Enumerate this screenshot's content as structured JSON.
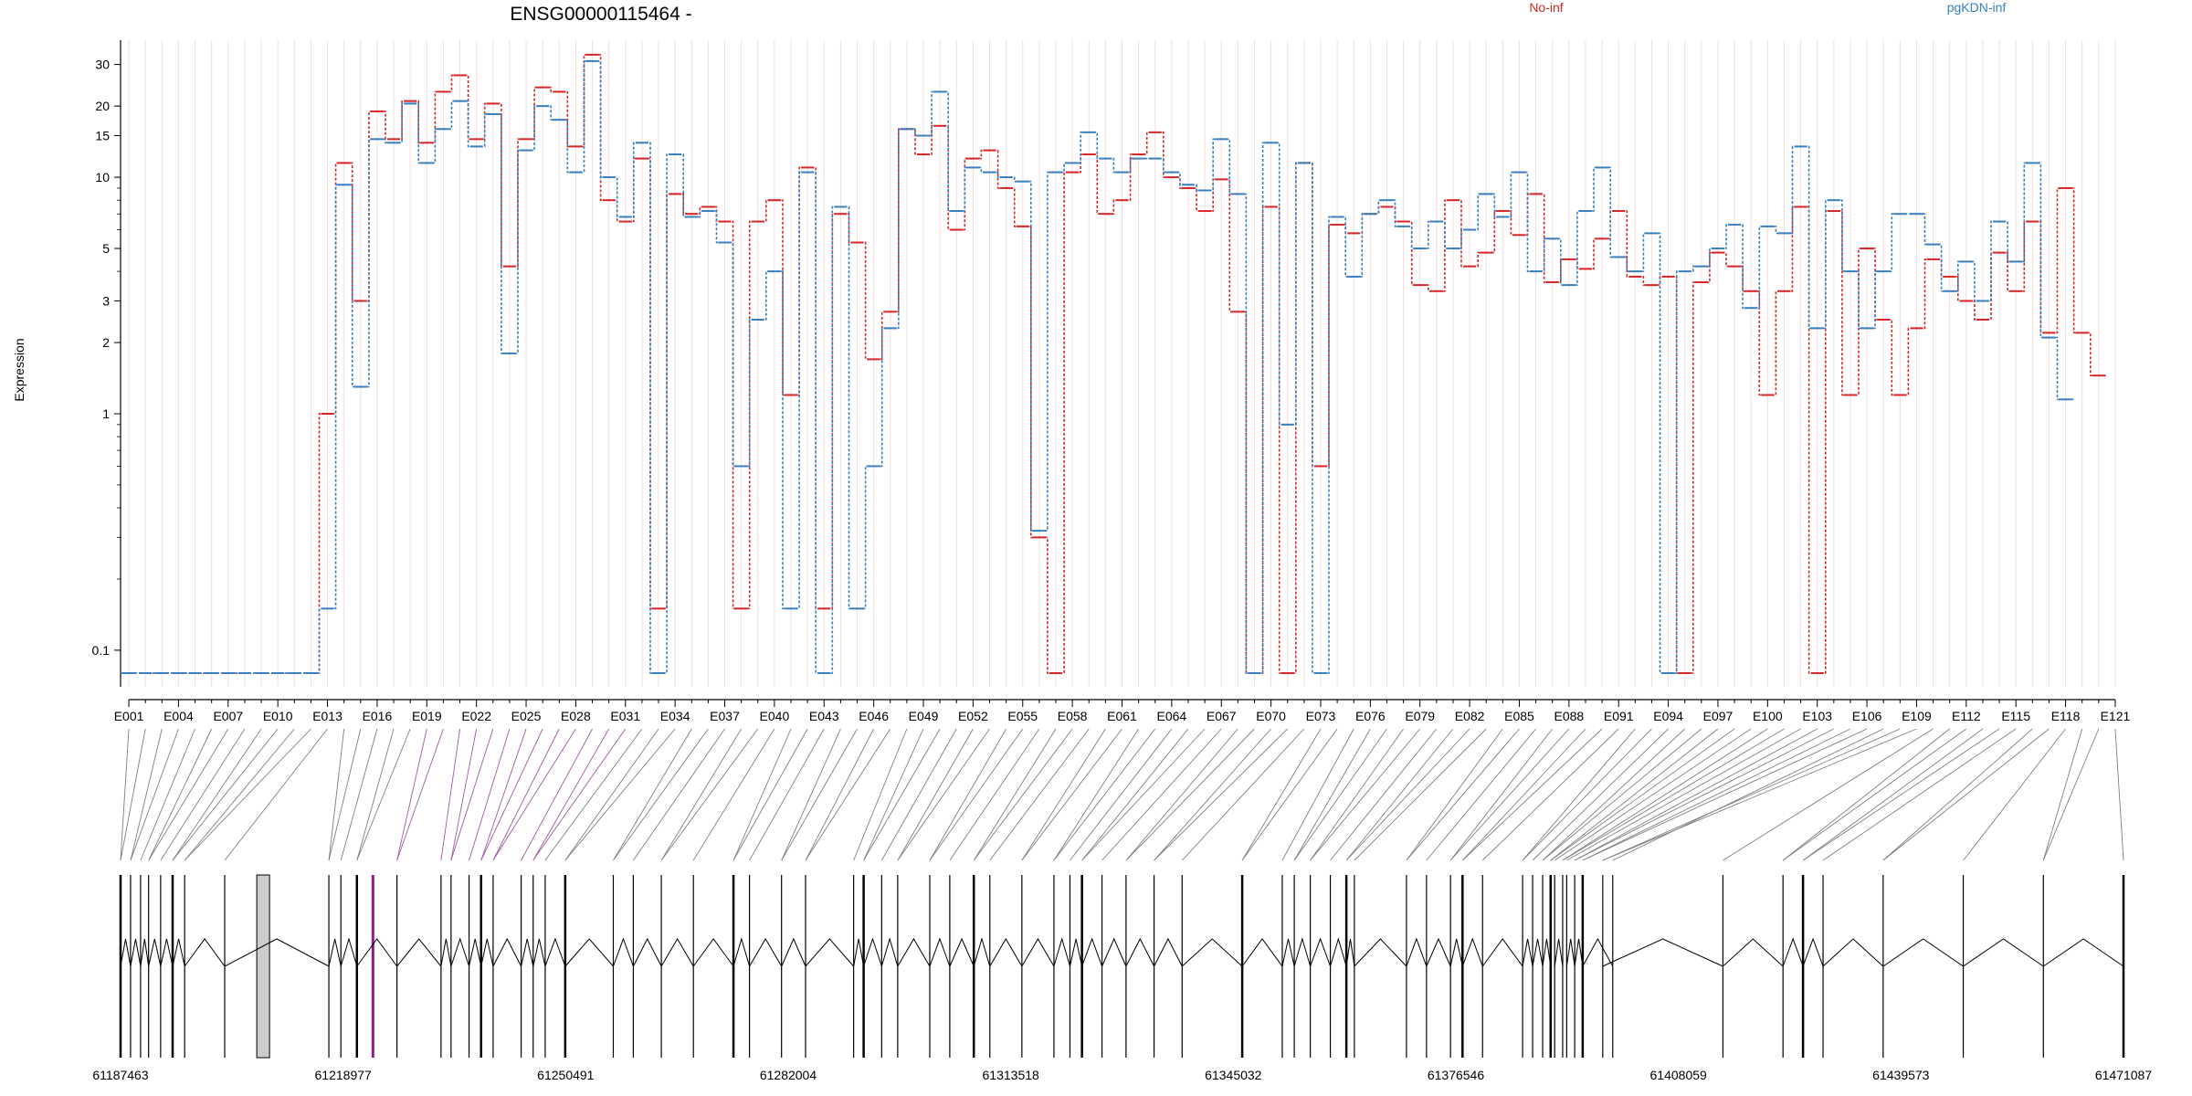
{
  "chart_data": {
    "type": "line",
    "title": "ENSG00000115464 -",
    "ylabel": "Expression",
    "yscale": "log",
    "ylim": [
      0.07,
      38
    ],
    "y_ticks": [
      0.1,
      1,
      2,
      3,
      5,
      10,
      15,
      20,
      30
    ],
    "y_tick_labels": [
      "0.1",
      "1",
      "2",
      "3",
      "5",
      "10",
      "15",
      "20",
      "30"
    ],
    "grid": "vertical, faint pink",
    "legend_placement": "top",
    "exon_count": 121,
    "x_tick_labels": [
      "E001",
      "E004",
      "E007",
      "E010",
      "E013",
      "E016",
      "E019",
      "E022",
      "E025",
      "E028",
      "E031",
      "E034",
      "E037",
      "E040",
      "E043",
      "E046",
      "E049",
      "E052",
      "E055",
      "E058",
      "E061",
      "E064",
      "E067",
      "E070",
      "E073",
      "E076",
      "E079",
      "E082",
      "E085",
      "E088",
      "E091",
      "E094",
      "E097",
      "E100",
      "E103",
      "E106",
      "E109",
      "E112",
      "E115",
      "E118",
      "E121"
    ],
    "series": [
      {
        "name": "No-inf",
        "color": "#d62728",
        "values": [
          0.08,
          0.08,
          0.08,
          0.08,
          0.08,
          0.08,
          0.08,
          0.08,
          0.08,
          0.08,
          0.08,
          0.08,
          1.0,
          11.5,
          3.0,
          19,
          14.5,
          21,
          14,
          23,
          27,
          14.5,
          20.5,
          4.2,
          14.5,
          24,
          23,
          13.5,
          33,
          8,
          6.5,
          12,
          0.15,
          8.5,
          7.0,
          7.5,
          6.5,
          0.15,
          6.5,
          8,
          1.2,
          11,
          0.15,
          7,
          5.3,
          1.7,
          2.7,
          16,
          12.5,
          16.5,
          6,
          12,
          13,
          9,
          6.2,
          0.3,
          0.08,
          10.5,
          12.5,
          7,
          8,
          12.5,
          15.5,
          10,
          9,
          7.2,
          9.8,
          2.7,
          0.08,
          7.5,
          0.08,
          11.5,
          0.6,
          6.3,
          5.8,
          7,
          7.5,
          6.5,
          3.5,
          3.3,
          8,
          4.2,
          4.8,
          7.2,
          5.7,
          8.5,
          3.6,
          4.5,
          4.1,
          5.5,
          7.2,
          3.8,
          3.5,
          3.8,
          0.08,
          3.6,
          4.8,
          4.2,
          3.3,
          1.2,
          3.3,
          7.5,
          0.08,
          7.2,
          1.2,
          5,
          2.5,
          1.2,
          2.3,
          4.5,
          3.8,
          3.0,
          2.5,
          4.8,
          3.3,
          6.5,
          2.2,
          9,
          2.2,
          1.45
        ]
      },
      {
        "name": "pgKDN-inf",
        "color": "#3a7fbf",
        "values": [
          0.08,
          0.08,
          0.08,
          0.08,
          0.08,
          0.08,
          0.08,
          0.08,
          0.08,
          0.08,
          0.08,
          0.08,
          0.15,
          9.3,
          1.3,
          14.5,
          14,
          20.5,
          11.5,
          16,
          21,
          13.5,
          18.5,
          1.8,
          13,
          20,
          17.5,
          10.5,
          31,
          10,
          6.8,
          14,
          0.08,
          12.5,
          6.8,
          7.2,
          5.3,
          0.6,
          2.5,
          4,
          0.15,
          10.5,
          0.08,
          7.5,
          0.15,
          0.6,
          2.3,
          16,
          15,
          23,
          7.2,
          11,
          10.5,
          10,
          9.6,
          0.32,
          10.5,
          11.5,
          15.5,
          12,
          10.5,
          12,
          12,
          10.5,
          9.3,
          8.8,
          14.5,
          8.5,
          0.08,
          14,
          0.9,
          11.5,
          0.08,
          6.8,
          3.8,
          7,
          8,
          6.2,
          5,
          6.5,
          5,
          6,
          8.5,
          6.8,
          10.5,
          4,
          5.5,
          3.5,
          7.2,
          11,
          4.6,
          4,
          5.8,
          0.08,
          4,
          4.2,
          5,
          6.3,
          2.8,
          6.2,
          5.8,
          13.5,
          2.3,
          8,
          4,
          2.3,
          4,
          7,
          7,
          5.2,
          3.3,
          4.4,
          3.0,
          6.5,
          4.4,
          11.5,
          2.1,
          1.15
        ]
      }
    ],
    "genomic_axis_labels": [
      "61187463",
      "61218977",
      "61250491",
      "61282004",
      "61313518",
      "61345032",
      "61376546",
      "61408059",
      "61439573",
      "61471087"
    ],
    "gene_model_range": [
      61187463,
      61471087
    ]
  }
}
